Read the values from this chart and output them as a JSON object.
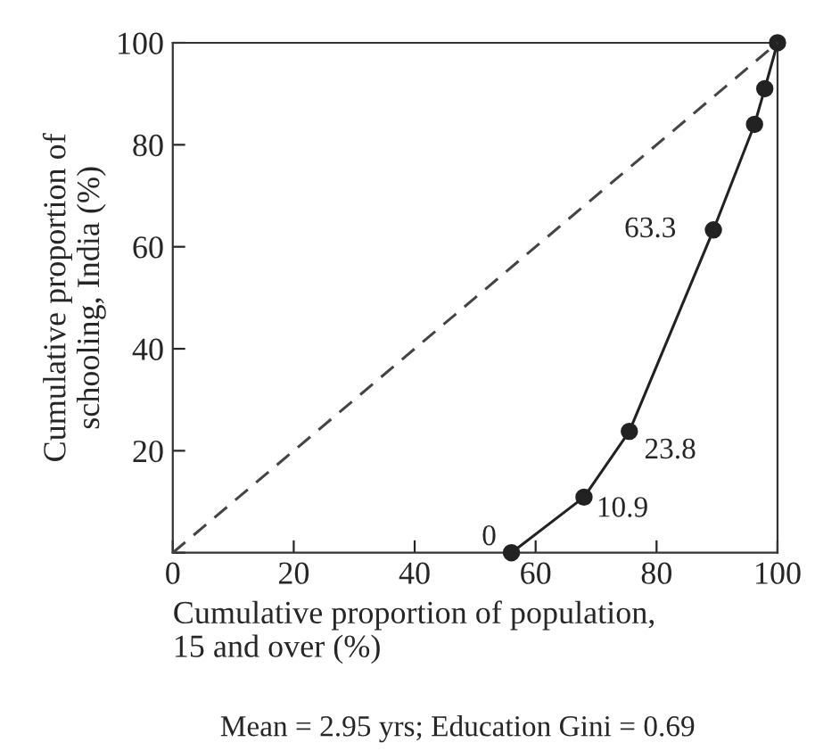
{
  "chart_data": {
    "type": "line",
    "xlabel": "Cumulative proportion of population,\n15 and over (%)",
    "ylabel": "Cumulative proportion of\nschooling, India (%)",
    "annotations": [
      "Mean = 2.95 yrs; Education Gini = 0.69"
    ],
    "series": [
      {
        "type": "line",
        "color": "#222222",
        "marker": "circle",
        "line_style": "solid",
        "x": [
          56,
          68,
          75.5,
          89.4,
          96.2,
          97.9,
          100
        ],
        "values": [
          0,
          10.9,
          23.8,
          63.3,
          84,
          91,
          100
        ],
        "value_labels": [
          "0",
          "10.9",
          "23.8",
          "63.3",
          null,
          null,
          null
        ]
      },
      {
        "type": "line",
        "color": "#444444",
        "marker": "none",
        "line_style": "dashed",
        "x": [
          0,
          100
        ],
        "values": [
          0,
          100
        ]
      }
    ],
    "xlim": [
      0,
      100
    ],
    "ylim": [
      0,
      100
    ],
    "xticks": [
      0,
      20,
      40,
      60,
      80,
      100
    ],
    "yticks": [
      {
        "value": 0,
        "label": null
      },
      20,
      40,
      60,
      80,
      100
    ],
    "grid": false,
    "legend": false
  }
}
